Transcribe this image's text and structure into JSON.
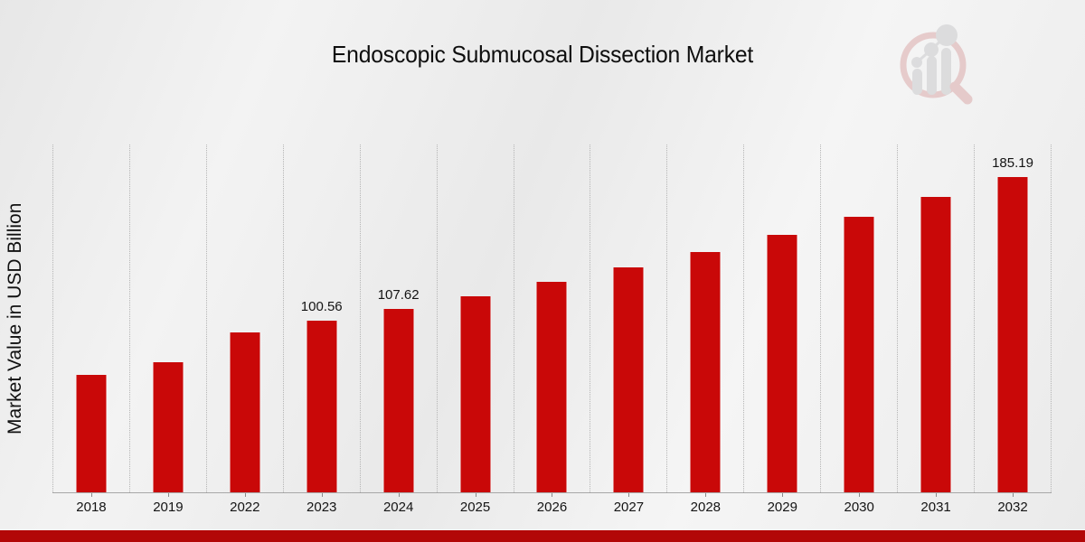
{
  "header": {
    "title": "Endoscopic Submucosal Dissection Market"
  },
  "watermark_icon": "magnifier-bar-chart-logo",
  "chart_data": {
    "type": "bar",
    "title": "Endoscopic Submucosal Dissection Market",
    "xlabel": "",
    "ylabel": "Market Value in USD Billion",
    "categories": [
      "2018",
      "2019",
      "2022",
      "2023",
      "2024",
      "2025",
      "2026",
      "2027",
      "2028",
      "2029",
      "2030",
      "2031",
      "2032"
    ],
    "values": [
      69.0,
      76.4,
      93.96,
      100.56,
      107.62,
      115.17,
      123.26,
      131.91,
      141.17,
      151.08,
      161.69,
      173.04,
      185.19
    ],
    "bar_labels": [
      "",
      "",
      "",
      "100.56",
      "107.62",
      "",
      "",
      "",
      "",
      "",
      "",
      "",
      "185.19"
    ],
    "ylim": [
      0,
      204
    ],
    "grid": "vertical-dotted-gridlines",
    "legend_position": "none",
    "bar_color": "#c90808",
    "background": "light-gray-gradient"
  },
  "colors": {
    "bar": "#c90808",
    "bottom_strip": "#b20707",
    "gridline": "#b5b5b5",
    "axis_line": "#a8a8a8",
    "text": "#141414",
    "logo_ring": "#c87070",
    "logo_bars": "#a9a9ad"
  }
}
